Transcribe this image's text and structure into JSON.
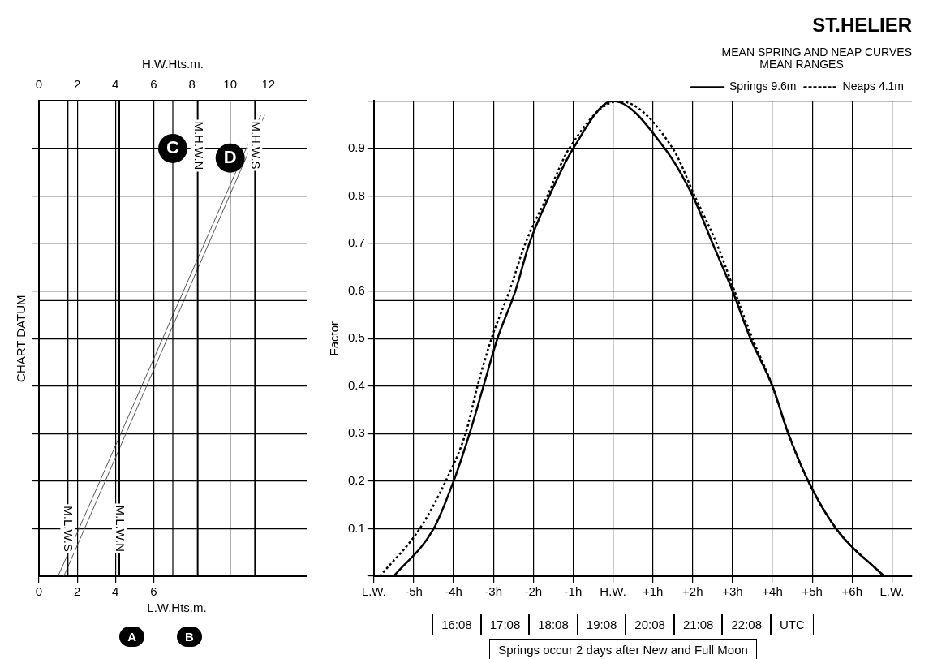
{
  "chart_data": [
    {
      "type": "line",
      "xlabel": "L.W.Hts.m.",
      "x2label": "H.W.Hts.m.",
      "ylabel": "CHART DATUM",
      "xlim": [
        0,
        14
      ],
      "xticks": [
        0,
        2,
        4,
        6
      ],
      "x2lim": [
        0,
        14
      ],
      "x2ticks": [
        0,
        2,
        4,
        6,
        8,
        10,
        12
      ],
      "ylim": [
        0,
        1
      ],
      "yticks": [
        0.1,
        0.2,
        0.3,
        0.4,
        0.5,
        0.6,
        0.7,
        0.8,
        0.9
      ],
      "tick_labels": "x",
      "grid": true,
      "legend": false,
      "series": [
        {
          "color": "#555555",
          "x": [
            1.0,
            11.6
          ],
          "values": [
            0,
            0.97
          ]
        },
        {
          "color": "#555555",
          "x": [
            1.3,
            11.8
          ],
          "values": [
            0,
            0.97
          ]
        }
      ],
      "ref_lines": [
        {
          "axis": "x",
          "value": 1.5,
          "label": "M.L.W.S"
        },
        {
          "axis": "x",
          "value": 4.2,
          "label": "M.L.W.N"
        },
        {
          "axis": "x",
          "value": 8.3,
          "label": "M.H.W.N"
        },
        {
          "axis": "x",
          "value": 11.3,
          "label": "M.H.W.S"
        },
        {
          "axis": "x",
          "value": 7.0
        },
        {
          "axis": "x",
          "value": 10.0
        },
        {
          "axis": "y",
          "value": 0.58
        }
      ],
      "annotations": [
        {
          "text": "C",
          "x": 7.0,
          "y": 0.9
        },
        {
          "text": "D",
          "x": 10.0,
          "y": 0.88
        },
        "A",
        "B"
      ]
    },
    {
      "type": "line",
      "title": "ST.HELIER",
      "subtitle": "MEAN SPRING AND NEAP CURVES",
      "ylabel": "Factor",
      "legend_title": "MEAN RANGES",
      "legend": "top right",
      "xlim": [
        -6,
        7.5
      ],
      "xticks": [
        {
          "value": -6,
          "label": "L.W."
        },
        {
          "value": -5,
          "label": "-5h"
        },
        {
          "value": -4,
          "label": "-4h"
        },
        {
          "value": -3,
          "label": "-3h"
        },
        {
          "value": -2,
          "label": "-2h"
        },
        {
          "value": -1,
          "label": "-1h"
        },
        {
          "value": 0,
          "label": "H.W."
        },
        {
          "value": 1,
          "label": "+1h"
        },
        {
          "value": 2,
          "label": "+2h"
        },
        {
          "value": 3,
          "label": "+3h"
        },
        {
          "value": 4,
          "label": "+4h"
        },
        {
          "value": 5,
          "label": "+5h"
        },
        {
          "value": 6,
          "label": "+6h"
        },
        {
          "value": 7,
          "label": "L.W."
        }
      ],
      "ylim": [
        0,
        1
      ],
      "yticks": [
        {
          "value": 0,
          "label": null
        },
        0.1,
        0.2,
        0.3,
        0.4,
        0.5,
        0.6,
        0.7,
        0.8,
        0.9,
        {
          "value": 1,
          "label": null
        }
      ],
      "grid": true,
      "series": [
        {
          "name": "Springs 9.6m",
          "color": "#000000",
          "line_style": "solid",
          "x": [
            -5.5,
            -4.5,
            -4.0,
            -3.6,
            -3.25,
            -2.9,
            -2.45,
            -2.1,
            -1.6,
            -1.0,
            0,
            1.3,
            2.0,
            2.5,
            3.0,
            3.45,
            4.0,
            4.4,
            4.9,
            5.6,
            6.8
          ],
          "values": [
            0,
            0.1,
            0.2,
            0.3,
            0.4,
            0.5,
            0.6,
            0.7,
            0.8,
            0.9,
            1,
            0.9,
            0.8,
            0.7,
            0.6,
            0.5,
            0.4,
            0.3,
            0.2,
            0.1,
            0
          ]
        },
        {
          "name": "Neaps 4.1m",
          "color": "#000000",
          "line_style": "dotted",
          "x": [
            -5.85,
            -4.85,
            -4.2,
            -3.7,
            -3.4,
            -3.05,
            -2.6,
            -2.2,
            -1.65,
            -1.1,
            0.15,
            1.5,
            2.05,
            2.6,
            3.05,
            3.5,
            4.0,
            4.4,
            4.9,
            5.6,
            6.8
          ],
          "values": [
            0,
            0.1,
            0.2,
            0.3,
            0.4,
            0.5,
            0.6,
            0.7,
            0.8,
            0.9,
            1,
            0.9,
            0.8,
            0.7,
            0.6,
            0.5,
            0.4,
            0.3,
            0.2,
            0.1,
            0
          ]
        }
      ],
      "ref_lines": [
        {
          "axis": "y",
          "value": 0.58
        }
      ],
      "annotations": [
        "16:08",
        "17:08",
        "18:08",
        "19:08",
        "20:08",
        "21:08",
        "22:08",
        "UTC",
        "Springs occur 2 days after New and Full Moon"
      ]
    }
  ]
}
